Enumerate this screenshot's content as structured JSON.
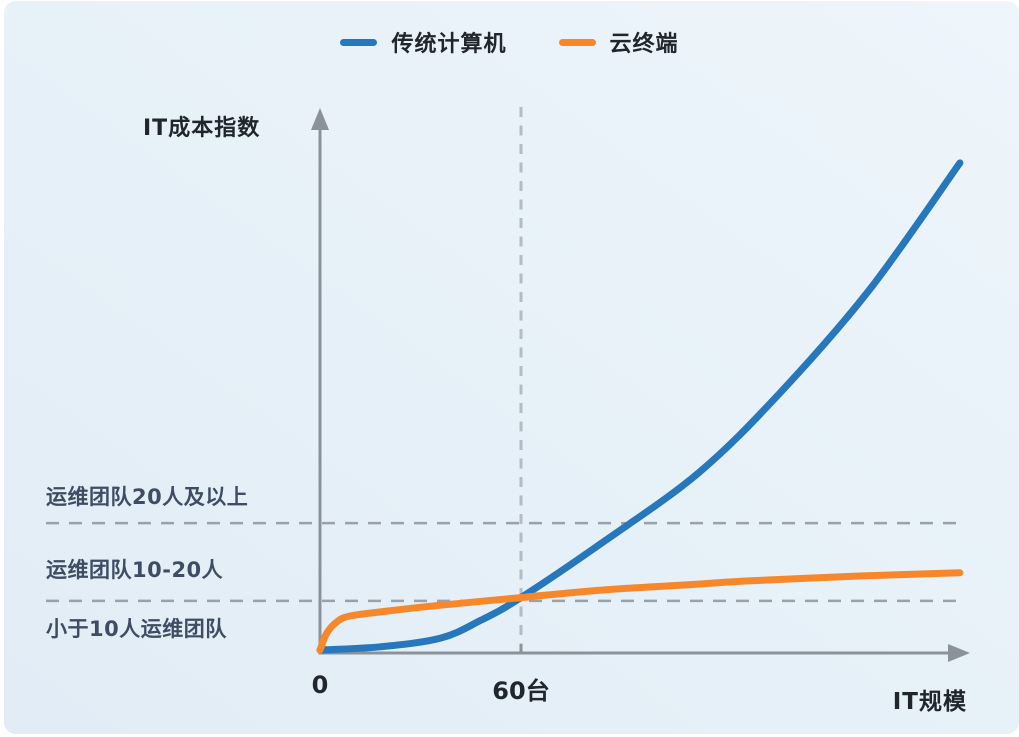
{
  "colors": {
    "panel_from": "#e1ecf6",
    "panel_to": "#eef5fb",
    "axis": "#8b9299",
    "dash_horizontal": "#9aa1a9",
    "dash_vertical": "#b4bbc3",
    "text_primary": "#21262d",
    "text_band": "#3e4d63",
    "series_traditional": "#2677bb",
    "series_cloud": "#f6882b"
  },
  "chart_data": {
    "type": "line",
    "title": "",
    "xlabel": "IT规模",
    "ylabel": "IT成本指数",
    "x_unit": "台",
    "x_range": [
      0,
      195
    ],
    "y_range": [
      0,
      100
    ],
    "grid": "off",
    "legend_position": "top-center",
    "x_ticks": [
      {
        "value": 0,
        "label": "0"
      },
      {
        "value": 60,
        "label": "60台"
      }
    ],
    "vertical_guide_x": 60,
    "dashed_levels": [
      9.1,
      23.5
    ],
    "band_labels": [
      {
        "text": "小于10人运维团队",
        "y_center": 4
      },
      {
        "text": "运维团队10-20人",
        "y_center": 15
      },
      {
        "text": "运维团队20人及以上",
        "y_center": 28.5
      }
    ],
    "series": [
      {
        "name": "传统计算机",
        "color": "#2677bb",
        "x": [
          0,
          18,
          36,
          48,
          60,
          85,
          113,
          137,
          164,
          191
        ],
        "y": [
          0,
          0.6,
          2.2,
          5.5,
          9.7,
          20.2,
          32.8,
          47.4,
          66.7,
          90.2
        ]
      },
      {
        "name": "云终端",
        "color": "#f6882b",
        "x": [
          0,
          2,
          5,
          9,
          20,
          36,
          60,
          84,
          113,
          128,
          161,
          191
        ],
        "y": [
          0,
          3.1,
          5.2,
          6.3,
          7.2,
          8.3,
          9.7,
          11.1,
          12.2,
          12.8,
          13.7,
          14.3
        ]
      }
    ]
  }
}
